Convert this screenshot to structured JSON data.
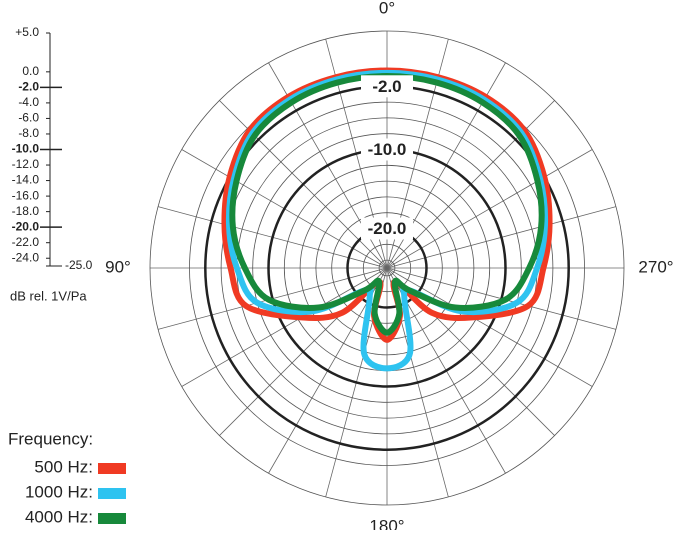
{
  "chart_data": {
    "type": "polar",
    "axis_label": "dB rel. 1V/Pa",
    "legend_title": "Frequency:",
    "rlim": [
      -25,
      5
    ],
    "rticks": [
      {
        "value": 5,
        "label": "+5.0"
      },
      {
        "value": 0,
        "label": "0.0"
      },
      {
        "value": -2,
        "label": "-2.0"
      },
      {
        "value": -4,
        "label": "-4.0"
      },
      {
        "value": -6,
        "label": "-6.0"
      },
      {
        "value": -8,
        "label": "-8.0"
      },
      {
        "value": -10,
        "label": "-10.0"
      },
      {
        "value": -12,
        "label": "-12.0"
      },
      {
        "value": -14,
        "label": "-14.0"
      },
      {
        "value": -16,
        "label": "-16.0"
      },
      {
        "value": -18,
        "label": "-18.0"
      },
      {
        "value": -20,
        "label": "-20.0"
      },
      {
        "value": -22,
        "label": "-22.0"
      },
      {
        "value": -24,
        "label": "-24.0"
      },
      {
        "value": -25,
        "label": "-25.0"
      }
    ],
    "rmajor": [
      {
        "value": -2,
        "label": "-2.0"
      },
      {
        "value": -10,
        "label": "-10.0"
      },
      {
        "value": -20,
        "label": "-20.0"
      }
    ],
    "angle_ticks": [
      {
        "value": 0,
        "label": "0°"
      },
      {
        "value": 90,
        "label": "90°"
      },
      {
        "value": 180,
        "label": "180°"
      },
      {
        "value": 270,
        "label": "270°"
      }
    ],
    "theta": [
      0,
      15,
      30,
      45,
      60,
      75,
      90,
      105,
      120,
      135,
      150,
      165,
      180,
      195,
      210,
      225,
      240,
      255,
      270,
      285,
      300,
      315,
      330,
      345
    ],
    "series": [
      {
        "name": "500 Hz:",
        "color": "#f03a23",
        "values": [
          0,
          0,
          0,
          -0.4,
          -2,
          -3.7,
          -5.2,
          -6.5,
          -12.5,
          -17,
          -23,
          -18.7,
          -15.9,
          -18.7,
          -23,
          -17,
          -12.5,
          -6.5,
          -5.2,
          -3.7,
          -2,
          -0.4,
          0,
          0
        ]
      },
      {
        "name": "1000 Hz:",
        "color": "#2ec3f0",
        "values": [
          -0.3,
          -0.3,
          -0.4,
          -0.9,
          -2.6,
          -4.3,
          -6,
          -8,
          -14,
          -21,
          -20.6,
          -13.8,
          -12.3,
          -13.8,
          -20.6,
          -21,
          -14,
          -8,
          -6,
          -4.3,
          -2.6,
          -0.9,
          -0.4,
          -0.3
        ]
      },
      {
        "name": "4000 Hz:",
        "color": "#17893b",
        "values": [
          -0.7,
          -0.7,
          -0.8,
          -1.3,
          -3,
          -4.8,
          -7,
          -9.5,
          -15,
          -21,
          -23,
          -19,
          -16.8,
          -19,
          -23,
          -21,
          -15,
          -9.5,
          -7,
          -4.8,
          -3,
          -1.3,
          -0.8,
          -0.7
        ]
      }
    ]
  }
}
